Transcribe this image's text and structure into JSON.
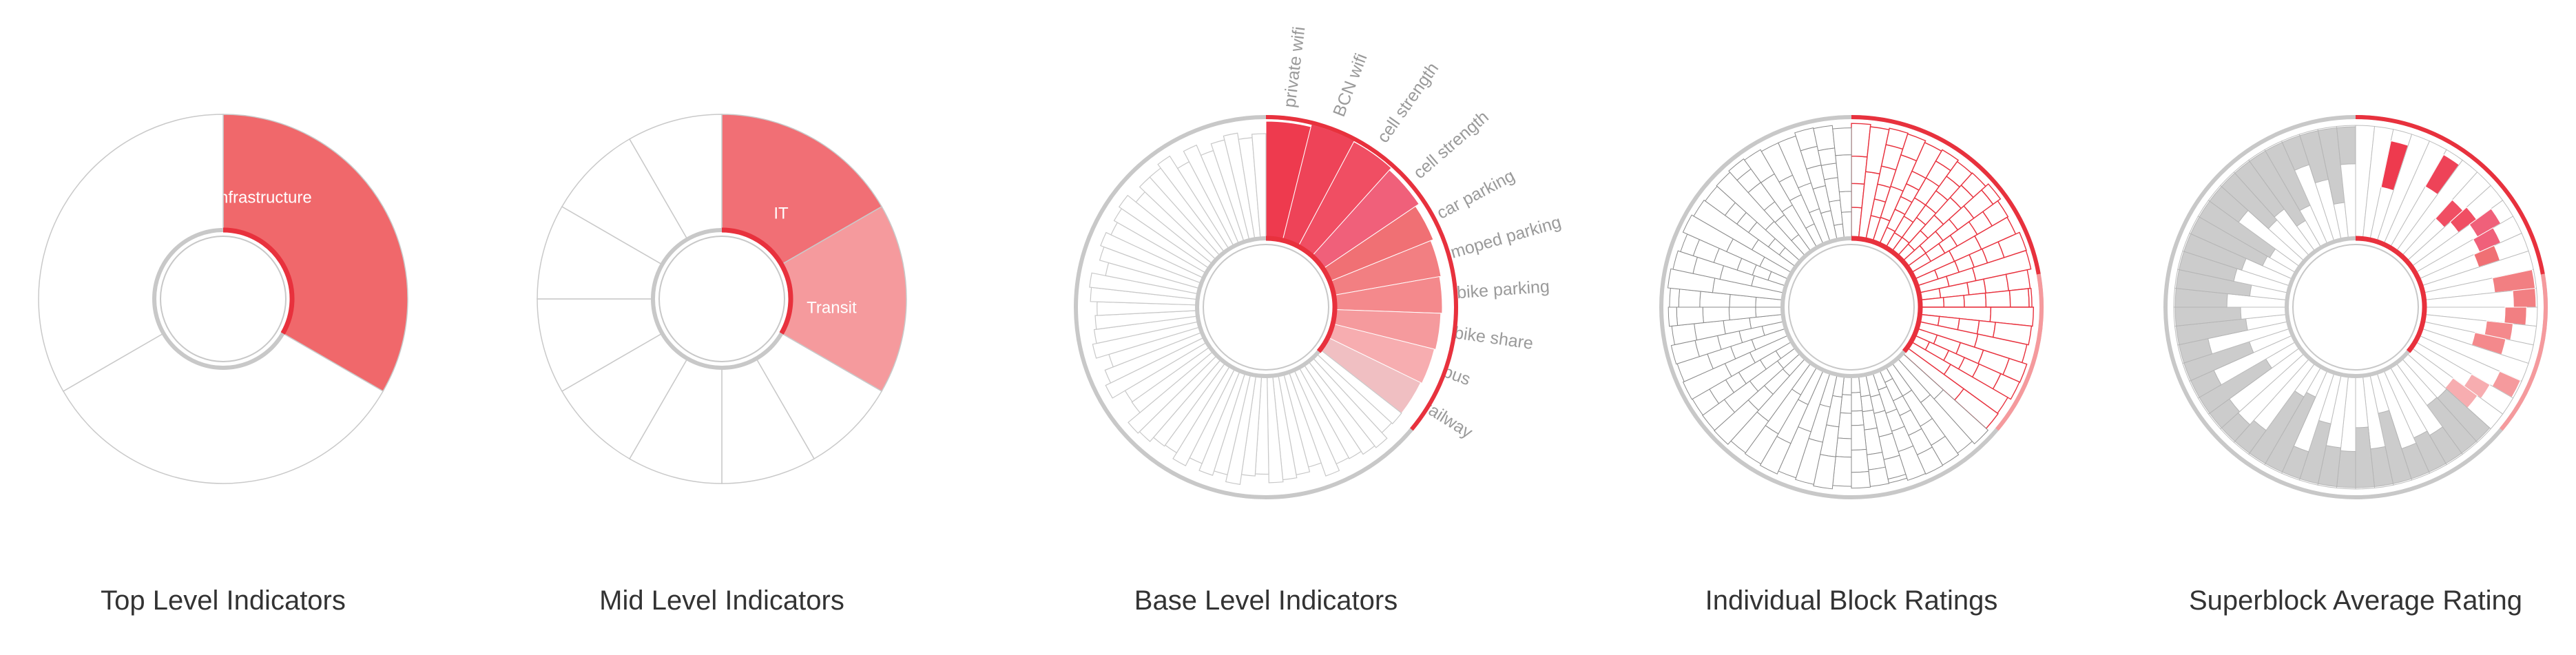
{
  "diagrams": [
    {
      "id": "top",
      "caption": "Top Level Indicators",
      "sectors": [
        {
          "label": "Infrastructure",
          "span_deg": 120,
          "fill": "#f0686b"
        },
        {
          "label": "",
          "span_deg": 120,
          "fill": "#ffffff"
        },
        {
          "label": "",
          "span_deg": 120,
          "fill": "#ffffff"
        }
      ]
    },
    {
      "id": "mid",
      "caption": "Mid Level Indicators",
      "sectors": [
        {
          "label": "IT",
          "span_deg": 60,
          "fill": "#f16f75"
        },
        {
          "label": "Transit",
          "span_deg": 60,
          "fill": "#f59a9d"
        },
        {
          "label": "",
          "span_deg": 30,
          "fill": "#ffffff"
        },
        {
          "label": "",
          "span_deg": 30,
          "fill": "#ffffff"
        },
        {
          "label": "",
          "span_deg": 30,
          "fill": "#ffffff"
        },
        {
          "label": "",
          "span_deg": 30,
          "fill": "#ffffff"
        },
        {
          "label": "",
          "span_deg": 30,
          "fill": "#ffffff"
        },
        {
          "label": "",
          "span_deg": 30,
          "fill": "#ffffff"
        },
        {
          "label": "",
          "span_deg": 30,
          "fill": "#ffffff"
        },
        {
          "label": "",
          "span_deg": 30,
          "fill": "#ffffff"
        }
      ]
    },
    {
      "id": "base",
      "caption": "Base Level Indicators",
      "indicators": [
        {
          "label": "private wifi",
          "fill": "#ee3a4e"
        },
        {
          "label": "BCN wifi",
          "fill": "#ee4358"
        },
        {
          "label": "cell strength",
          "fill": "#f04e63"
        },
        {
          "label": "cell strength",
          "fill": "#f0607a"
        },
        {
          "label": "car parking",
          "fill": "#f07074"
        },
        {
          "label": "moped parking",
          "fill": "#f27f82"
        },
        {
          "label": "bike parking",
          "fill": "#f4898c"
        },
        {
          "label": "bike share",
          "fill": "#f59a9d"
        },
        {
          "label": "bus",
          "fill": "#f7adb0"
        },
        {
          "label": "railway",
          "fill": "#f0bfc2"
        }
      ],
      "other_segments": 50
    },
    {
      "id": "blocks",
      "caption": "Individual Block Ratings"
    },
    {
      "id": "superblock",
      "caption": "Superblock Average Rating"
    }
  ],
  "colors": {
    "accent": "#e8313d",
    "ring": "#c8c8c8",
    "line": "#c2c2c2",
    "gray_fill": "#cccccc"
  }
}
